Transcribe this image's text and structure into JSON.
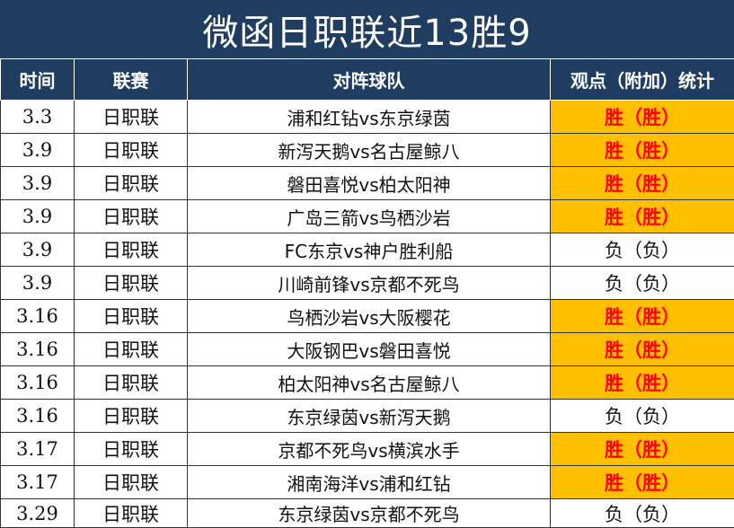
{
  "title": "微函日职联近13胜9",
  "headers": {
    "date": "时间",
    "league": "联赛",
    "match": "对阵球队",
    "result": "观点（附加）统计"
  },
  "rows": [
    {
      "date": "3.3",
      "league": "日职联",
      "match": "浦和红钻vs东京绿茵",
      "result": "胜（胜）",
      "outcome": "win"
    },
    {
      "date": "3.9",
      "league": "日职联",
      "match": "新泻天鹅vs名古屋鲸八",
      "result": "胜（胜）",
      "outcome": "win"
    },
    {
      "date": "3.9",
      "league": "日职联",
      "match": "磐田喜悦vs柏太阳神",
      "result": "胜（胜）",
      "outcome": "win"
    },
    {
      "date": "3.9",
      "league": "日职联",
      "match": "广岛三箭vs鸟栖沙岩",
      "result": "胜（胜）",
      "outcome": "win"
    },
    {
      "date": "3.9",
      "league": "日职联",
      "match": "FC东京vs神户胜利船",
      "result": "负（负）",
      "outcome": "loss"
    },
    {
      "date": "3.9",
      "league": "日职联",
      "match": "川崎前锋vs京都不死鸟",
      "result": "负（负）",
      "outcome": "loss"
    },
    {
      "date": "3.16",
      "league": "日职联",
      "match": "鸟栖沙岩vs大阪樱花",
      "result": "胜（胜）",
      "outcome": "win"
    },
    {
      "date": "3.16",
      "league": "日职联",
      "match": "大阪钢巴vs磐田喜悦",
      "result": "胜（胜）",
      "outcome": "win"
    },
    {
      "date": "3.16",
      "league": "日职联",
      "match": "柏太阳神vs名古屋鲸八",
      "result": "胜（胜）",
      "outcome": "win"
    },
    {
      "date": "3.16",
      "league": "日职联",
      "match": "东京绿茵vs新泻天鹅",
      "result": "负（负）",
      "outcome": "loss"
    },
    {
      "date": "3.17",
      "league": "日职联",
      "match": "京都不死鸟vs横滨水手",
      "result": "胜（胜）",
      "outcome": "win"
    },
    {
      "date": "3.17",
      "league": "日职联",
      "match": "湘南海洋vs浦和红钻",
      "result": "胜（胜）",
      "outcome": "win"
    },
    {
      "date": "3.29",
      "league": "日职联",
      "match": "东京绿茵vs京都不死鸟",
      "result": "负（负）",
      "outcome": "loss"
    }
  ],
  "colors": {
    "header_bg": "#1f3c61",
    "win_bg": "#ffc000",
    "win_text": "#ff0000"
  }
}
